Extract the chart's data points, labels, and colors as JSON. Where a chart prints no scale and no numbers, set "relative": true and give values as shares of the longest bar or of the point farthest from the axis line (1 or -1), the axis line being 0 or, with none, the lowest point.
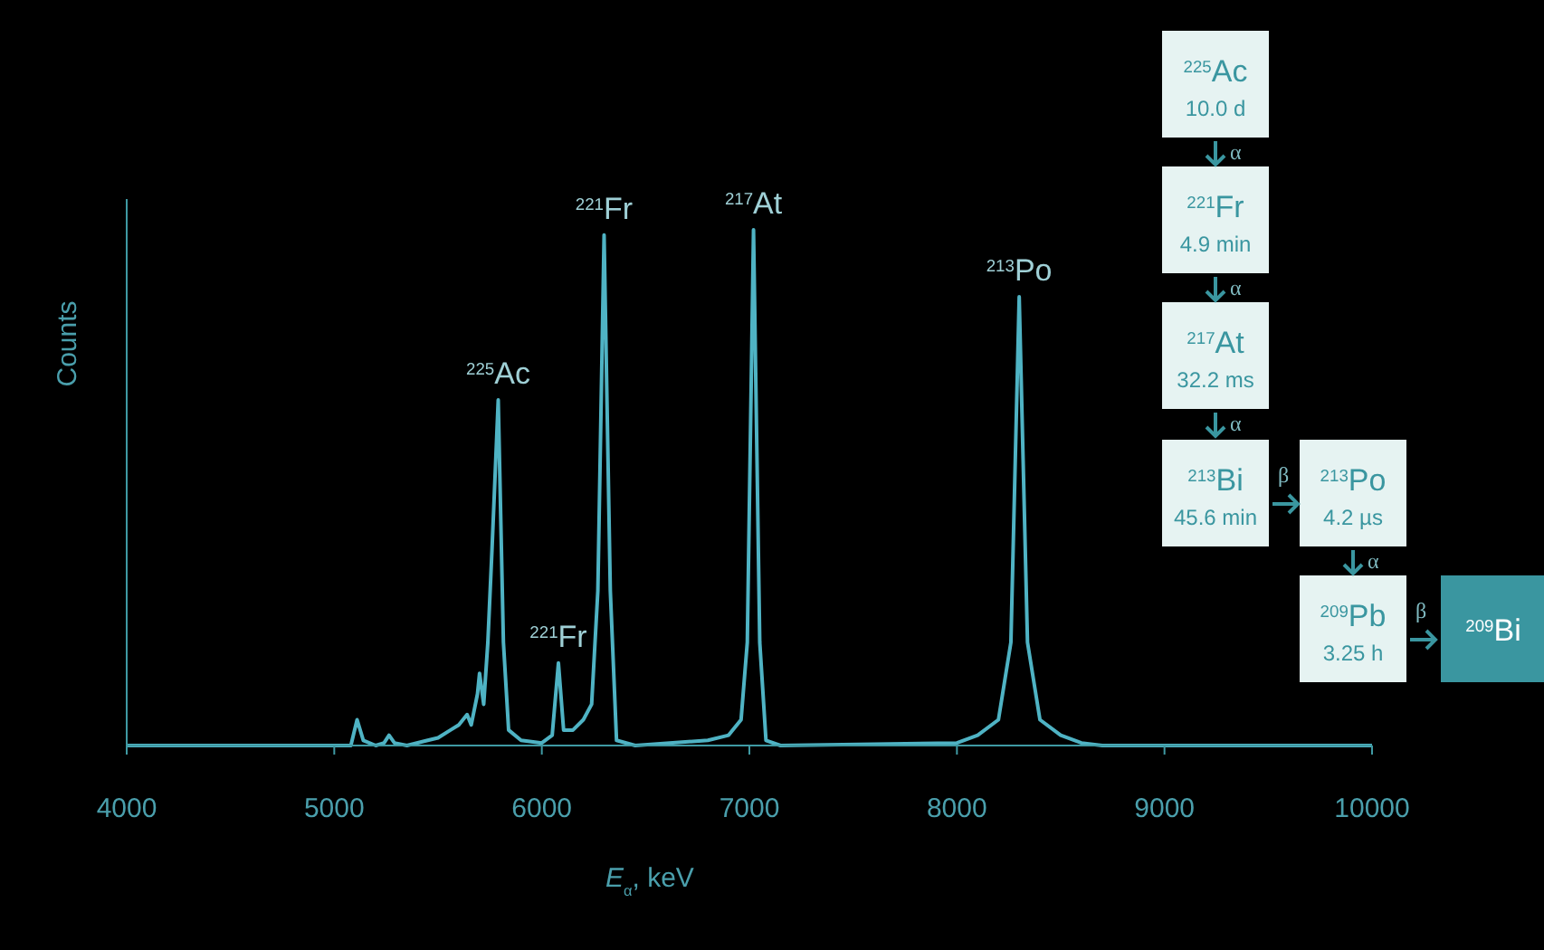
{
  "chart_data": {
    "type": "line",
    "relative": true,
    "xlabel": "E$_{α}$, keV",
    "ylabel": "Counts",
    "xlim": [
      4000,
      10000
    ],
    "xticks": [
      4000,
      5000,
      6000,
      7000,
      8000,
      9000,
      10000
    ],
    "marker": "none",
    "line_style": "solid",
    "series": [
      {
        "color": "#4fb3c4",
        "x": [
          4000,
          5080,
          5110,
          5140,
          5200,
          5240,
          5264,
          5290,
          5350,
          5450,
          5500,
          5560,
          5600,
          5640,
          5660,
          5690,
          5700,
          5720,
          5740,
          5760,
          5790,
          5815,
          5840,
          5900,
          6000,
          6050,
          6080,
          6105,
          6150,
          6200,
          6240,
          6270,
          6300,
          6330,
          6360,
          6450,
          6800,
          6900,
          6960,
          6990,
          7020,
          7050,
          7080,
          7150,
          8000,
          8100,
          8200,
          8260,
          8300,
          8340,
          8400,
          8500,
          8600,
          8700,
          10000
        ],
        "values": [
          0,
          0,
          0.05,
          0.01,
          0,
          0.005,
          0.02,
          0.005,
          0,
          0.01,
          0.015,
          0.03,
          0.04,
          0.06,
          0.04,
          0.1,
          0.14,
          0.08,
          0.2,
          0.38,
          0.67,
          0.2,
          0.03,
          0.01,
          0.005,
          0.02,
          0.16,
          0.03,
          0.03,
          0.05,
          0.08,
          0.3,
          0.99,
          0.3,
          0.01,
          0,
          0.01,
          0.02,
          0.05,
          0.2,
          1.0,
          0.2,
          0.01,
          0,
          0.005,
          0.02,
          0.05,
          0.2,
          0.87,
          0.2,
          0.05,
          0.02,
          0.005,
          0,
          0
        ]
      }
    ],
    "annotations": [
      {
        "text": "$^{225}$Ac",
        "x": 5790,
        "y": 0.67
      },
      {
        "text": "$^{221}$Fr",
        "x": 6080,
        "y": 0.16
      },
      {
        "text": "$^{221}$Fr",
        "x": 6300,
        "y": 0.99
      },
      {
        "text": "$^{217}$At",
        "x": 7020,
        "y": 1.0
      },
      {
        "text": "$^{213}$Po",
        "x": 8300,
        "y": 0.87
      },
      "$^{225}$Ac",
      "10.0 d",
      "α",
      "$^{221}$Fr",
      "4.9 min",
      "α",
      "$^{217}$At",
      "32.2 ms",
      "α",
      "$^{213}$Bi",
      "45.6 min",
      "β",
      "$^{213}$Po",
      "4.2 µs",
      "α",
      "$^{209}$Pb",
      "3.25 h",
      "β",
      "$^{209}$Bi"
    ]
  }
}
